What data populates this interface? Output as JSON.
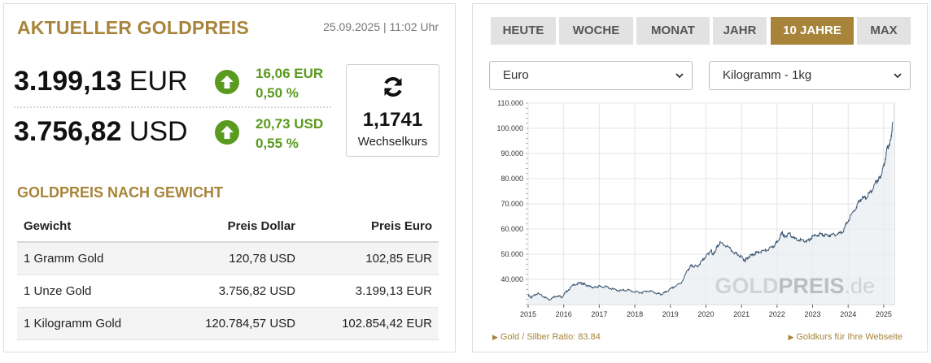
{
  "left": {
    "title": "AKTUELLER GOLDPREIS",
    "datetime": "25.09.2025 | 11:02 Uhr",
    "prices": [
      {
        "value": "3.199,13",
        "currency": "EUR",
        "change_abs": "16,06 EUR",
        "change_pct": "0,50 %"
      },
      {
        "value": "3.756,82",
        "currency": "USD",
        "change_abs": "20,73 USD",
        "change_pct": "0,55 %"
      }
    ],
    "exchange": {
      "value": "1,1741",
      "label": "Wechselkurs"
    },
    "section_title": "GOLDPREIS NACH GEWICHT",
    "table": {
      "headers": [
        "Gewicht",
        "Preis Dollar",
        "Preis Euro"
      ],
      "rows": [
        [
          "1 Gramm Gold",
          "120,78 USD",
          "102,85 EUR"
        ],
        [
          "1 Unze Gold",
          "3.756,82 USD",
          "3.199,13 EUR"
        ],
        [
          "1 Kilogramm Gold",
          "120.784,57 USD",
          "102.854,42 EUR"
        ]
      ]
    },
    "colors": {
      "accent": "#a8843a",
      "positive": "#5a9a1e"
    },
    "icons": {
      "up": "arrow-up-circle-icon",
      "refresh": "refresh-icon"
    }
  },
  "right": {
    "tabs": [
      {
        "label": "HEUTE",
        "active": false
      },
      {
        "label": "WOCHE",
        "active": false
      },
      {
        "label": "MONAT",
        "active": false
      },
      {
        "label": "JAHR",
        "active": false
      },
      {
        "label": "10 JAHRE",
        "active": true
      },
      {
        "label": "MAX",
        "active": false
      }
    ],
    "currency_select": "Euro",
    "unit_select": "Kilogramm - 1kg",
    "watermark": {
      "part1": "GOLD",
      "part2": "PREIS",
      "part3": ".de"
    },
    "footer_left": "Gold / Silber Ratio: 83.84",
    "footer_right": "Goldkurs für Ihre Webseite"
  },
  "chart_data": {
    "type": "area",
    "title": "",
    "xlabel": "",
    "ylabel": "",
    "xlim": [
      2015.0,
      2025.3
    ],
    "ylim": [
      30000,
      110000
    ],
    "x_ticks": [
      "2015",
      "2016",
      "2017",
      "2018",
      "2019",
      "2020",
      "2021",
      "2022",
      "2023",
      "2024",
      "2025"
    ],
    "y_ticks": [
      "40.000",
      "50.000",
      "60.000",
      "70.000",
      "80.000",
      "90.000",
      "100.000",
      "110.000"
    ],
    "grid": true,
    "series": [
      {
        "x": [
          2015.0,
          2015.1,
          2015.25,
          2015.45,
          2015.6,
          2015.8,
          2015.95,
          2016.1,
          2016.3,
          2016.5,
          2016.6,
          2016.75,
          2016.9,
          2017.0,
          2017.2,
          2017.4,
          2017.6,
          2017.8,
          2018.0,
          2018.2,
          2018.4,
          2018.6,
          2018.75,
          2018.9,
          2019.1,
          2019.3,
          2019.5,
          2019.6,
          2019.75,
          2019.9,
          2020.05,
          2020.15,
          2020.2,
          2020.3,
          2020.4,
          2020.6,
          2020.8,
          2020.95,
          2021.1,
          2021.2,
          2021.35,
          2021.5,
          2021.7,
          2021.9,
          2022.0,
          2022.15,
          2022.2,
          2022.35,
          2022.5,
          2022.7,
          2022.85,
          2023.0,
          2023.2,
          2023.35,
          2023.5,
          2023.7,
          2023.85,
          2024.0,
          2024.2,
          2024.35,
          2024.5,
          2024.65,
          2024.8,
          2024.9,
          2025.0,
          2025.1,
          2025.2,
          2025.25
        ],
        "y": [
          33500,
          32800,
          34500,
          33000,
          32000,
          33500,
          33000,
          35500,
          38000,
          38500,
          38000,
          37000,
          36800,
          37200,
          37000,
          36000,
          35500,
          35800,
          35000,
          34800,
          35500,
          34500,
          34000,
          35200,
          37000,
          38500,
          44000,
          45500,
          45000,
          47500,
          50000,
          51500,
          49500,
          52500,
          54500,
          53000,
          50500,
          49500,
          47500,
          49000,
          50000,
          51000,
          51500,
          53000,
          55000,
          58500,
          57000,
          58000,
          56000,
          55500,
          55000,
          57000,
          58000,
          57500,
          57500,
          58000,
          59000,
          63500,
          68000,
          72000,
          72500,
          75000,
          79000,
          80500,
          85000,
          92000,
          95000,
          102000
        ]
      }
    ]
  }
}
